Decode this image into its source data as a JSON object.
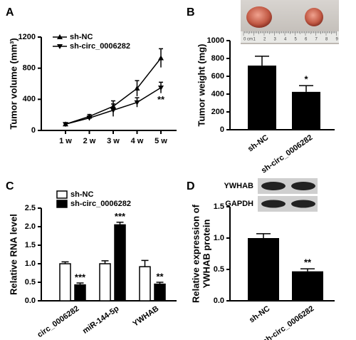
{
  "chart_data": [
    {
      "type": "line",
      "panel": "A",
      "ylabel": "Tumor volume (mm³)",
      "categories": [
        "1 w",
        "2 w",
        "3 w",
        "4 w",
        "5 w"
      ],
      "ylim": [
        0,
        1200
      ],
      "yticks": [
        0,
        400,
        800,
        1200
      ],
      "series": [
        {
          "name": "sh-NC",
          "color": "#000000",
          "marker": "triangle-up",
          "values": [
            80,
            180,
            310,
            540,
            930
          ],
          "errors": [
            15,
            25,
            70,
            100,
            120
          ]
        },
        {
          "name": "sh-circ_0006282",
          "color": "#000000",
          "marker": "triangle-down",
          "values": [
            80,
            160,
            260,
            360,
            550
          ],
          "errors": [
            15,
            25,
            80,
            60,
            70
          ]
        }
      ],
      "annotation": "**"
    },
    {
      "type": "bar",
      "panel": "B",
      "ylabel": "Tumor weight (mg)",
      "categories": [
        "sh-NC",
        "sh-circ_0006282"
      ],
      "values": [
        720,
        425
      ],
      "errors": [
        105,
        70
      ],
      "color": "#000000",
      "ylim": [
        0,
        1000
      ],
      "yticks": [
        0,
        200,
        400,
        600,
        800,
        1000
      ],
      "annotation": "*",
      "ruler_labels": [
        "0 cm",
        "1",
        "2",
        "3",
        "4",
        "5",
        "6",
        "7",
        "8",
        "9"
      ]
    },
    {
      "type": "grouped",
      "panel": "C",
      "ylabel": "Relative RNA level",
      "categories": [
        "circ_0006282",
        "miR-144-5p",
        "YWHAB"
      ],
      "ylim": [
        0,
        2.5
      ],
      "yticks": [
        {
          "value": 0,
          "label": "0.0"
        },
        0.5,
        {
          "value": 1,
          "label": "1.0"
        },
        1.5,
        {
          "value": 2,
          "label": "2.0"
        },
        2.5
      ],
      "series": [
        {
          "name": "sh-NC",
          "color": "#ffffff",
          "values": [
            1.0,
            1.0,
            0.92
          ],
          "errors": [
            0.05,
            0.08,
            0.17
          ]
        },
        {
          "name": "sh-circ_0006282",
          "color": "#000000",
          "values": [
            0.43,
            2.05,
            0.45
          ],
          "errors": [
            0.05,
            0.07,
            0.05
          ],
          "annotations": [
            "***",
            "***",
            "**"
          ]
        }
      ]
    },
    {
      "type": "bar",
      "panel": "D",
      "ylabel": [
        "Relative expression of",
        "YWHAB protein"
      ],
      "categories": [
        "sh-NC",
        "sh-circ_0006282"
      ],
      "values": [
        1.0,
        0.47
      ],
      "errors": [
        0.07,
        0.04
      ],
      "color": "#000000",
      "ylim": [
        0,
        1.5
      ],
      "yticks": [
        {
          "value": 0,
          "label": "0.0"
        },
        0.5,
        {
          "value": 1,
          "label": "1.0"
        },
        1.5
      ],
      "annotation": "**",
      "blot_labels": [
        "YWHAB",
        "GAPDH"
      ]
    }
  ]
}
